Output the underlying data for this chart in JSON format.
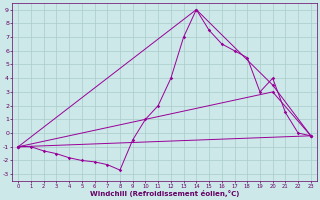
{
  "xlabel": "Windchill (Refroidissement éolien,°C)",
  "bg_color": "#cce8e8",
  "line_color": "#990099",
  "grid_color": "#aacccc",
  "xlim": [
    -0.5,
    23.5
  ],
  "ylim": [
    -3.5,
    9.5
  ],
  "xticks": [
    0,
    1,
    2,
    3,
    4,
    5,
    6,
    7,
    8,
    9,
    10,
    11,
    12,
    13,
    14,
    15,
    16,
    17,
    18,
    19,
    20,
    21,
    22,
    23
  ],
  "yticks": [
    -3,
    -2,
    -1,
    0,
    1,
    2,
    3,
    4,
    5,
    6,
    7,
    8,
    9
  ],
  "line1_x": [
    0,
    1,
    2,
    3,
    4,
    5,
    6,
    7,
    8,
    9,
    10,
    11,
    12,
    13,
    14,
    15,
    16,
    17,
    18,
    19,
    20,
    21,
    22,
    23
  ],
  "line1_y": [
    -1,
    -1,
    -1.3,
    -1.5,
    -1.8,
    -2.0,
    -2.1,
    -2.3,
    -2.7,
    -0.5,
    1.0,
    2.0,
    4.0,
    7.0,
    9.0,
    7.5,
    6.5,
    6.0,
    5.5,
    3.0,
    4.0,
    1.5,
    0.0,
    -0.2
  ],
  "line2_x": [
    0,
    14,
    20,
    23
  ],
  "line2_y": [
    -1,
    9,
    3.5,
    -0.2
  ],
  "line3_x": [
    0,
    20,
    23
  ],
  "line3_y": [
    -1,
    3.0,
    -0.2
  ],
  "line4_x": [
    0,
    23
  ],
  "line4_y": [
    -1,
    -0.2
  ]
}
